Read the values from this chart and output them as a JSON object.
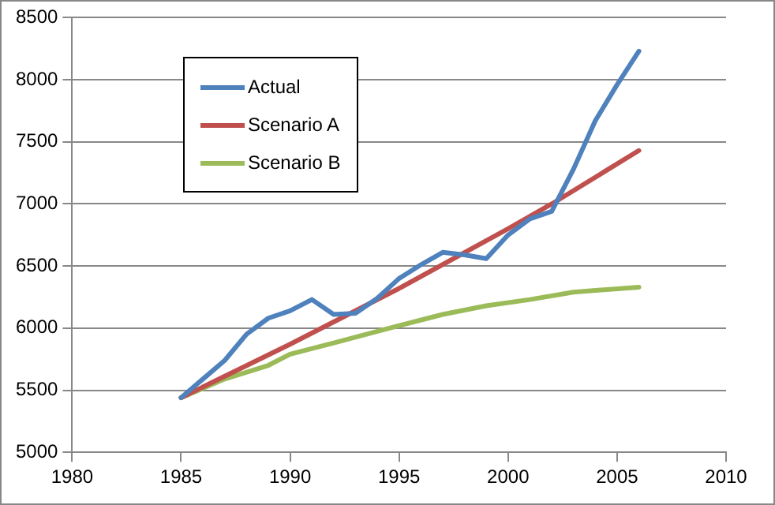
{
  "chart_data": {
    "type": "line",
    "xlim": [
      1980,
      2010
    ],
    "xticks": [
      1980,
      1985,
      1990,
      1995,
      2000,
      2005,
      2010
    ],
    "ylim": [
      5000,
      8500
    ],
    "yticks": [
      5000,
      5500,
      6000,
      6500,
      7000,
      7500,
      8000,
      8500
    ],
    "grid": "y",
    "legend": "top left",
    "marker": "none",
    "line_style": "solid",
    "series": [
      {
        "name": "Actual",
        "color": "#4f81bd",
        "x": [
          1985,
          1986,
          1987,
          1988,
          1989,
          1990,
          1991,
          1992,
          1993,
          1994,
          1995,
          1996,
          1997,
          1998,
          1999,
          2000,
          2001,
          2002,
          2003,
          2004,
          2005,
          2006
        ],
        "values": [
          5440,
          5590,
          5740,
          5950,
          6080,
          6140,
          6230,
          6110,
          6120,
          6240,
          6400,
          6510,
          6610,
          6590,
          6560,
          6750,
          6880,
          6940,
          7280,
          7670,
          7960,
          8230
        ]
      },
      {
        "name": "Scenario A",
        "color": "#c0504d",
        "x": [
          1985,
          1990,
          1995,
          2000,
          2002,
          2006
        ],
        "values": [
          5440,
          5870,
          6320,
          6800,
          7000,
          7430
        ]
      },
      {
        "name": "Scenario B",
        "color": "#9bbb59",
        "x": [
          1985,
          1987,
          1989,
          1990,
          1992,
          1995,
          1997,
          1999,
          2001,
          2003,
          2006
        ],
        "values": [
          5440,
          5590,
          5700,
          5790,
          5880,
          6020,
          6110,
          6180,
          6230,
          6290,
          6330
        ]
      }
    ]
  }
}
